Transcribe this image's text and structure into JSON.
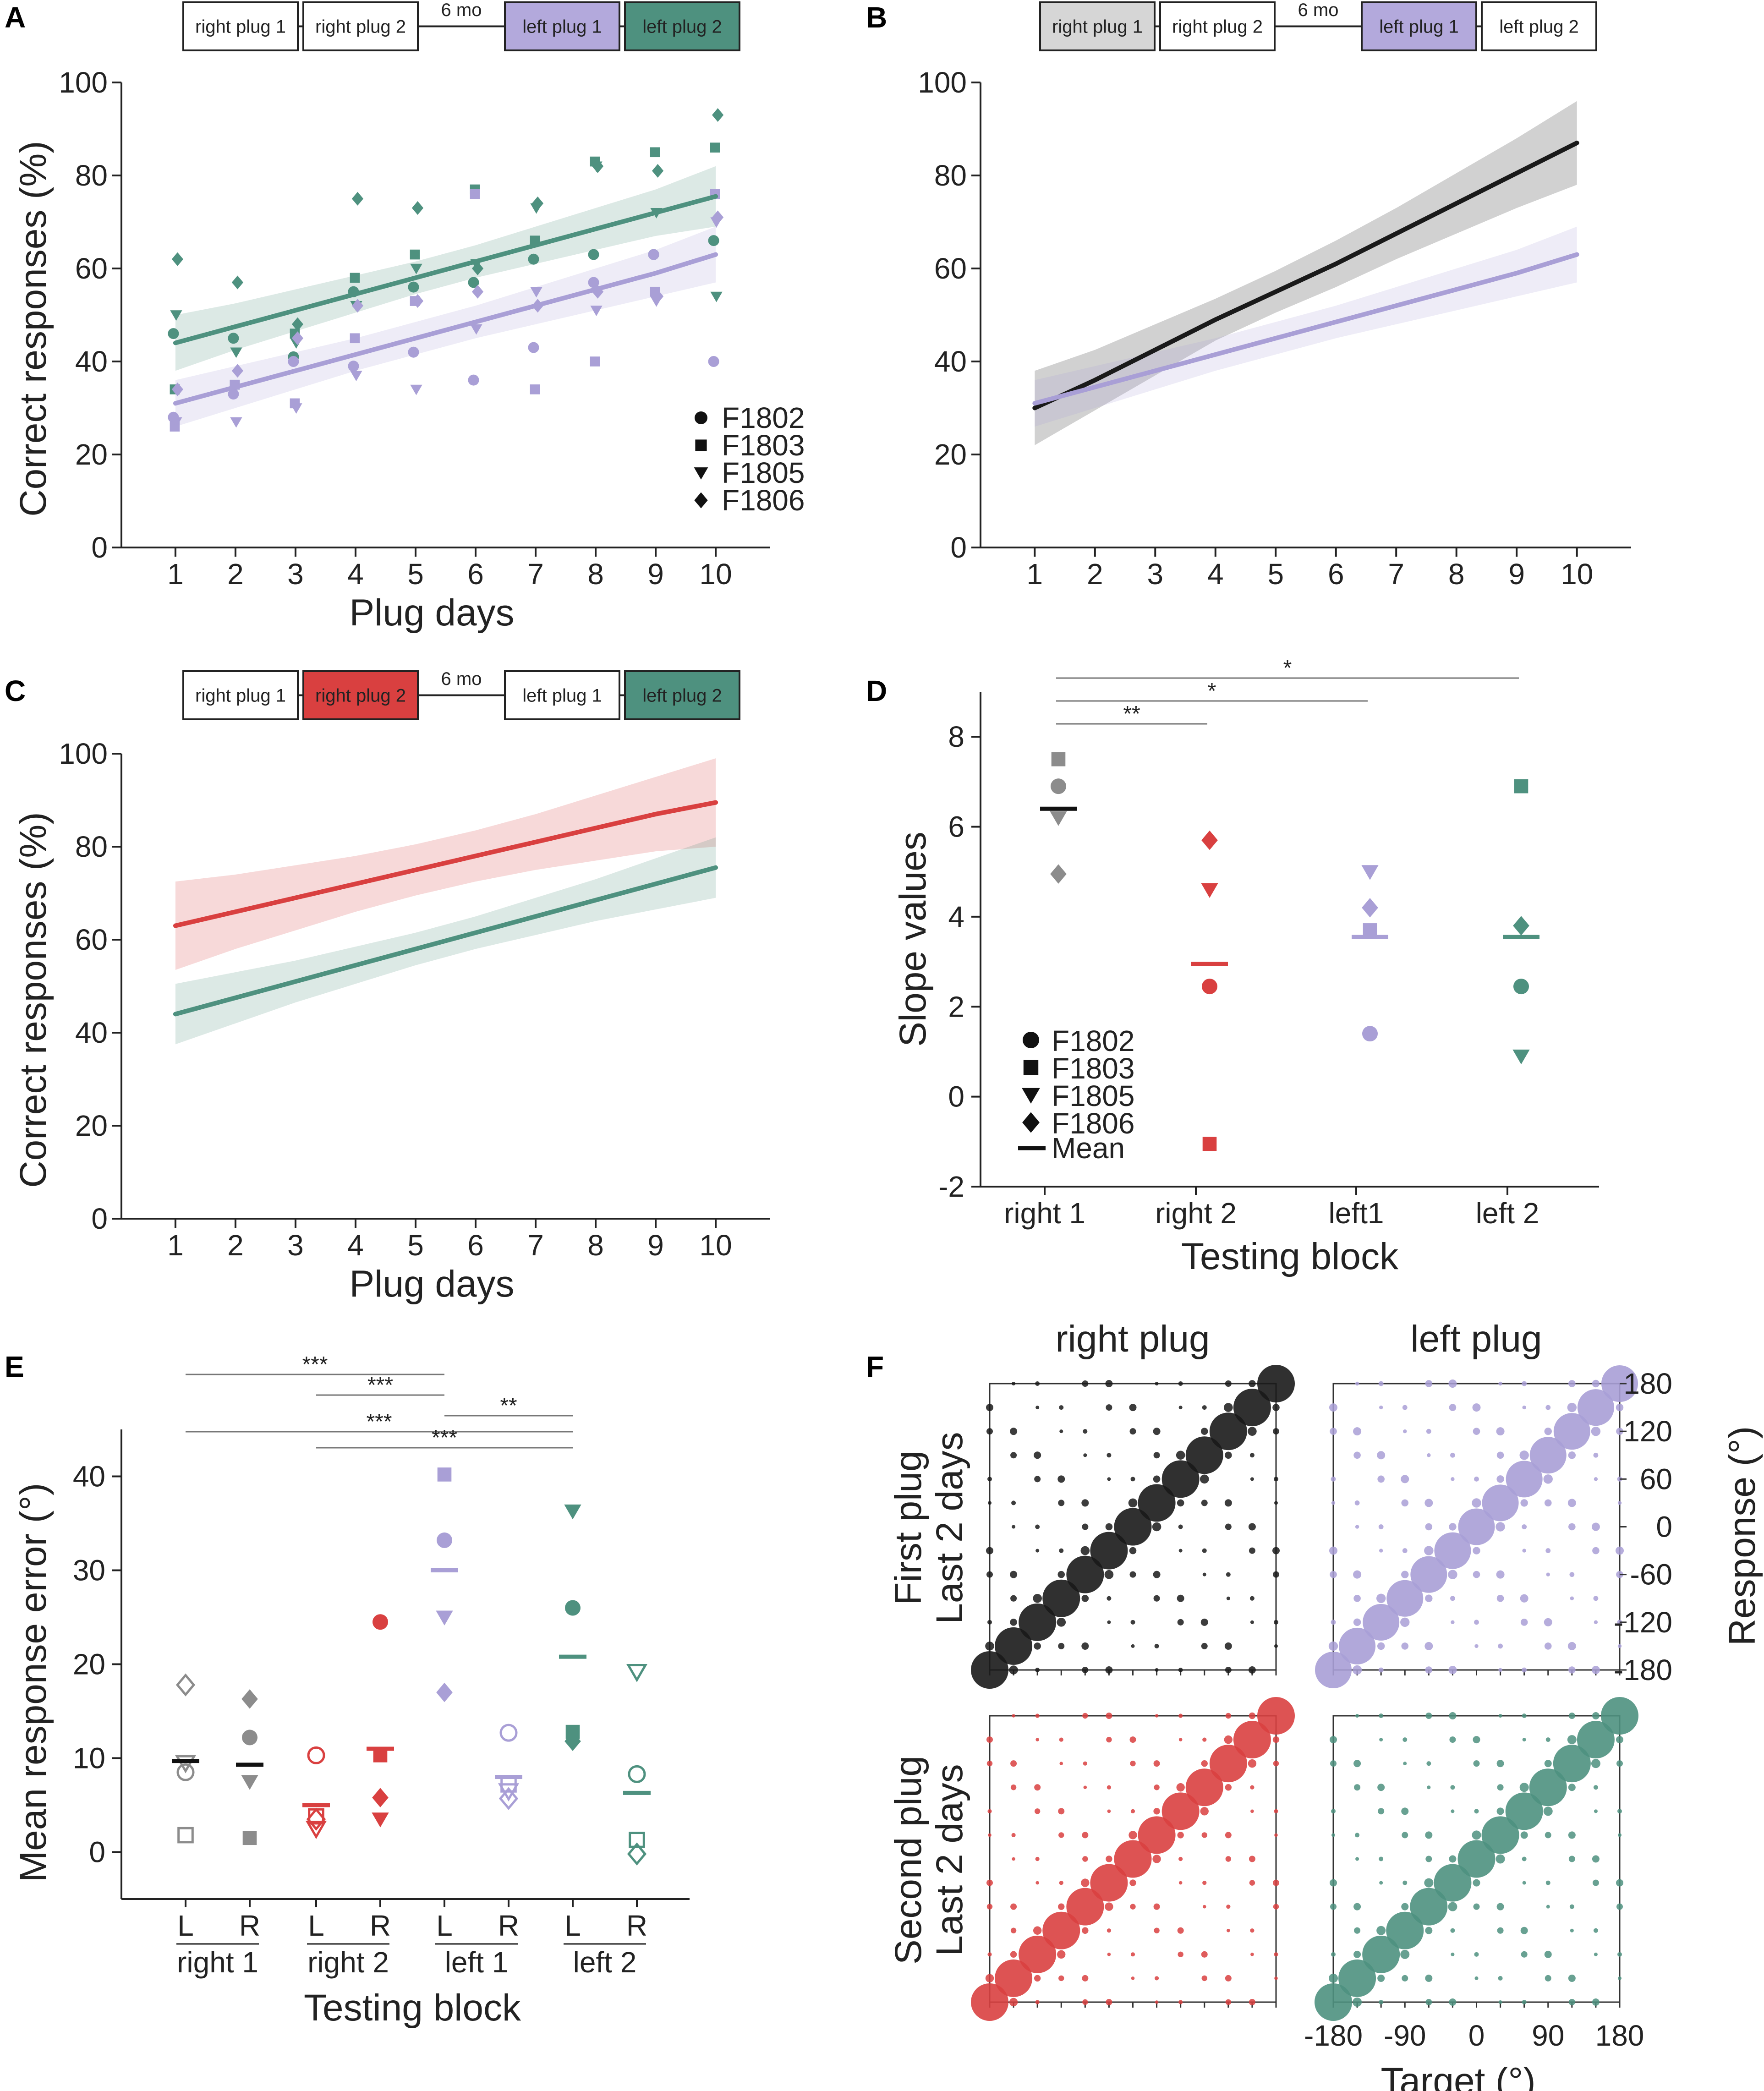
{
  "panels": {
    "A": "A",
    "B": "B",
    "C": "C",
    "D": "D",
    "E": "E",
    "F": "F"
  },
  "timelines": {
    "A": {
      "boxes": [
        "right plug 1",
        "right plug 2",
        "left plug 1",
        "left plug 2"
      ],
      "colors": [
        "#ffffff",
        "#ffffff",
        "#b3a9dc",
        "#4e917f"
      ],
      "gap": "6 mo"
    },
    "B": {
      "boxes": [
        "right plug 1",
        "right plug 2",
        "left plug 1",
        "left plug 2"
      ],
      "colors": [
        "#d6d6d6",
        "#ffffff",
        "#b3a9dc",
        "#ffffff"
      ],
      "gap": "6 mo"
    },
    "C": {
      "boxes": [
        "right plug 1",
        "right plug 2",
        "left plug 1",
        "left plug 2"
      ],
      "colors": [
        "#ffffff",
        "#d94040",
        "#ffffff",
        "#4e917f"
      ],
      "gap": "6 mo"
    }
  },
  "colors": {
    "purple": "#a99fd6",
    "green": "#4e917f",
    "red": "#d94040",
    "black": "#1a1a1a",
    "gray": "#8c8c8c"
  },
  "legend_ferrets": [
    "F1802",
    "F1803",
    "F1805",
    "F1806"
  ],
  "legend_mean": "Mean",
  "chart_data": [
    {
      "id": "A",
      "type": "scatter",
      "xlabel": "Plug days",
      "ylabel": "Correct responses (%)",
      "x": [
        1,
        2,
        3,
        4,
        5,
        6,
        7,
        8,
        9,
        10
      ],
      "ylim": [
        0,
        100
      ],
      "yticks": [
        0,
        20,
        40,
        60,
        80,
        100
      ],
      "series": [
        {
          "name": "left plug 2 fit",
          "color": "green",
          "line": [
            44,
            47.5,
            51,
            54.5,
            58,
            61.5,
            65,
            68.5,
            72,
            75.5
          ],
          "ci": [
            6,
            5,
            4.5,
            4,
            3.5,
            3.5,
            4,
            4.5,
            5,
            6.5
          ]
        },
        {
          "name": "left plug 1 fit",
          "color": "purple",
          "line": [
            31,
            34.5,
            38,
            41.5,
            45,
            48.5,
            52,
            55.5,
            59,
            63
          ],
          "ci": [
            5,
            4.5,
            4,
            3.5,
            3.5,
            3.5,
            4,
            4.5,
            5,
            6
          ]
        }
      ],
      "points": [
        {
          "color": "green",
          "ferret": "F1802",
          "y": [
            46,
            45,
            41,
            55,
            56,
            57,
            62,
            63,
            63,
            66
          ]
        },
        {
          "color": "green",
          "ferret": "F1803",
          "y": [
            34,
            35,
            46,
            58,
            63,
            77,
            66,
            83,
            85,
            86
          ]
        },
        {
          "color": "green",
          "ferret": "F1805",
          "y": [
            50,
            42,
            44,
            52,
            60,
            61,
            73,
            82,
            72,
            54
          ]
        },
        {
          "color": "green",
          "ferret": "F1806",
          "y": [
            62,
            57,
            48,
            75,
            73,
            60,
            74,
            82,
            81,
            93
          ]
        },
        {
          "color": "purple",
          "ferret": "F1802",
          "y": [
            28,
            33,
            40,
            39,
            42,
            36,
            43,
            57,
            63,
            40
          ]
        },
        {
          "color": "purple",
          "ferret": "F1803",
          "y": [
            26,
            35,
            31,
            45,
            53,
            76,
            34,
            40,
            55,
            76
          ]
        },
        {
          "color": "purple",
          "ferret": "F1805",
          "y": [
            27,
            27,
            30,
            37,
            34,
            47,
            55,
            51,
            53,
            70
          ]
        },
        {
          "color": "purple",
          "ferret": "F1806",
          "y": [
            34,
            38,
            45,
            52,
            53,
            55,
            52,
            55,
            54,
            71
          ]
        }
      ]
    },
    {
      "id": "B",
      "type": "line",
      "x": [
        1,
        2,
        3,
        4,
        5,
        6,
        7,
        8,
        9,
        10
      ],
      "ylim": [
        0,
        100
      ],
      "yticks": [
        0,
        20,
        40,
        60,
        80,
        100
      ],
      "series": [
        {
          "name": "right plug 1 fit",
          "color": "black",
          "line": [
            30,
            36,
            42.5,
            49,
            55,
            61,
            67.5,
            74,
            80.5,
            87
          ],
          "ci": [
            8,
            6.5,
            5.5,
            4.5,
            4.5,
            5,
            5.5,
            6.5,
            7.5,
            9
          ]
        },
        {
          "name": "left plug 1 fit",
          "color": "purple",
          "line": [
            31,
            34.5,
            38,
            41.5,
            45,
            48.5,
            52,
            55.5,
            59,
            63
          ],
          "ci": [
            5,
            4.5,
            4,
            3.5,
            3.5,
            3.5,
            4,
            4.5,
            5,
            6
          ]
        }
      ]
    },
    {
      "id": "C",
      "type": "line",
      "xlabel": "Plug days",
      "ylabel": "Correct responses (%)",
      "x": [
        1,
        2,
        3,
        4,
        5,
        6,
        7,
        8,
        9,
        10
      ],
      "ylim": [
        0,
        100
      ],
      "yticks": [
        0,
        20,
        40,
        60,
        80,
        100
      ],
      "series": [
        {
          "name": "right plug 2 fit",
          "color": "red",
          "line": [
            63,
            66,
            69,
            72,
            75,
            78,
            81,
            84,
            87,
            89.5
          ],
          "ci": [
            9.5,
            8,
            7,
            6,
            5.5,
            5.5,
            6,
            7,
            8,
            9.5
          ]
        },
        {
          "name": "left plug 2 fit",
          "color": "green",
          "line": [
            44,
            47.5,
            51,
            54.5,
            58,
            61.5,
            65,
            68.5,
            72,
            75.5
          ],
          "ci": [
            6.5,
            5.5,
            4.5,
            4,
            3.5,
            3.5,
            4,
            4.5,
            5.5,
            6.5
          ]
        }
      ]
    },
    {
      "id": "D",
      "type": "scatter",
      "xlabel": "Testing block",
      "ylabel": "Slope values",
      "categories": [
        "right 1",
        "right 2",
        "left1",
        "left 2"
      ],
      "ylim": [
        -2,
        9
      ],
      "yticks": [
        -2,
        0,
        2,
        4,
        6,
        8
      ],
      "groups": [
        {
          "color": "gray",
          "mean": 6.4,
          "F1802": 6.9,
          "F1803": 7.5,
          "F1805": 6.2,
          "F1806": 4.95
        },
        {
          "color": "red",
          "mean": 2.95,
          "F1802": 2.45,
          "F1803": -1.05,
          "F1805": 4.6,
          "F1806": 5.7
        },
        {
          "color": "purple",
          "mean": 3.55,
          "F1802": 1.4,
          "F1803": 3.7,
          "F1805": 5.0,
          "F1806": 4.2
        },
        {
          "color": "green",
          "mean": 3.55,
          "F1802": 2.45,
          "F1803": 6.9,
          "F1805": 0.9,
          "F1806": 3.8
        }
      ],
      "significance": [
        {
          "from": 0,
          "to": 1,
          "label": "**"
        },
        {
          "from": 0,
          "to": 2,
          "label": "*"
        },
        {
          "from": 0,
          "to": 3,
          "label": "*"
        }
      ]
    },
    {
      "id": "E",
      "type": "scatter",
      "xlabel": "Testing block",
      "ylabel": "Mean response error (°)",
      "ticks": [
        "L",
        "R",
        "L",
        "R",
        "L",
        "R",
        "L",
        "R"
      ],
      "blocks": [
        "right 1",
        "right 2",
        "left 1",
        "left 2"
      ],
      "ylim": [
        -5,
        45
      ],
      "yticks": [
        0,
        10,
        20,
        30,
        40
      ],
      "columns": [
        {
          "color": "gray",
          "filled": false,
          "mean": 9.7,
          "F1802": 8.5,
          "F1803": 1.8,
          "F1805": 9.5,
          "F1806": 17.8
        },
        {
          "color": "gray",
          "filled": true,
          "mean": 9.3,
          "F1802": 12.2,
          "F1803": 1.5,
          "F1805": 7.5,
          "F1806": 16.3
        },
        {
          "color": "red",
          "filled": false,
          "mean": 5.0,
          "F1802": 10.3,
          "F1803": 3.8,
          "F1805": 2.5,
          "F1806": 3.5
        },
        {
          "color": "red",
          "filled": true,
          "mean": 11.0,
          "F1802": 24.5,
          "F1803": 10.3,
          "F1805": 3.5,
          "F1806": 5.8
        },
        {
          "color": "purple",
          "filled": true,
          "mean": 30.0,
          "F1802": 33.2,
          "F1803": 40.2,
          "F1805": 25.0,
          "F1806": 17.0
        },
        {
          "color": "purple",
          "filled": false,
          "mean": 8.0,
          "F1802": 12.7,
          "F1803": 7.2,
          "F1805": 6.5,
          "F1806": 5.7
        },
        {
          "color": "green",
          "filled": true,
          "mean": 20.8,
          "F1802": 26.0,
          "F1803": 12.8,
          "F1805": 36.3,
          "F1806": 11.8
        },
        {
          "color": "green",
          "filled": false,
          "mean": 6.3,
          "F1802": 8.3,
          "F1803": 1.3,
          "F1805": 19.2,
          "F1806": -0.2
        }
      ],
      "significance": [
        {
          "from": 0,
          "to": 4,
          "label": "***"
        },
        {
          "from": 2,
          "to": 4,
          "label": "***"
        },
        {
          "from": 0,
          "to": 6,
          "label": "***"
        },
        {
          "from": 2,
          "to": 6,
          "label": "***"
        },
        {
          "from": 4,
          "to": 6,
          "label": "**"
        }
      ]
    },
    {
      "id": "F",
      "type": "scatter",
      "title_left": "right plug",
      "title_right": "left plug",
      "row_labels": [
        [
          "First plug",
          "Last 2 days"
        ],
        [
          "Second plug",
          "Last 2 days"
        ]
      ],
      "xlabel": "Target (°)",
      "ylabel": "Response (°)",
      "ticks": [
        -180,
        -120,
        -60,
        0,
        60,
        120,
        180
      ],
      "xticks_shown": [
        -180,
        -90,
        0,
        90,
        180
      ],
      "angles": [
        -180,
        -150,
        -120,
        -90,
        -60,
        -30,
        0,
        30,
        60,
        90,
        120,
        150,
        180
      ],
      "subplots": [
        {
          "color": "black",
          "diag": 0.9,
          "near": 0.28,
          "off": 0.1
        },
        {
          "color": "purple",
          "diag": 0.8,
          "near": 0.32,
          "off": 0.12
        },
        {
          "color": "red",
          "diag": 0.9,
          "near": 0.22,
          "off": 0.08
        },
        {
          "color": "green",
          "diag": 0.9,
          "near": 0.3,
          "off": 0.1
        }
      ]
    }
  ]
}
